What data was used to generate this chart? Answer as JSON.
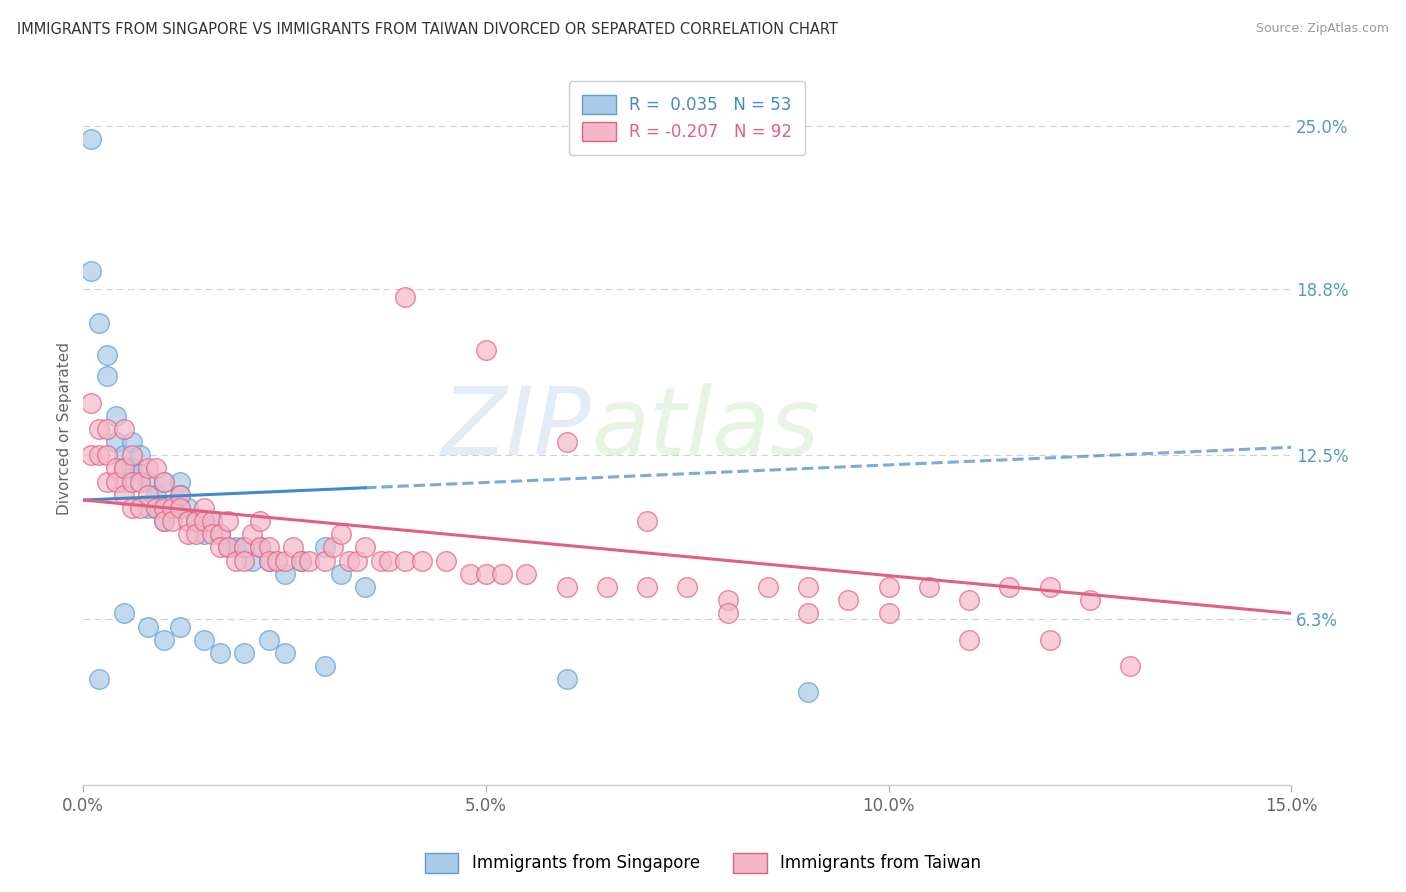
{
  "title": "IMMIGRANTS FROM SINGAPORE VS IMMIGRANTS FROM TAIWAN DIVORCED OR SEPARATED CORRELATION CHART",
  "source": "Source: ZipAtlas.com",
  "ylabel": "Divorced or Separated",
  "series": [
    {
      "label": "Immigrants from Singapore",
      "color": "#aac9e8",
      "edge_color": "#5a9fd4",
      "R": 0.035,
      "N": 53,
      "x": [
        0.001,
        0.001,
        0.002,
        0.003,
        0.003,
        0.004,
        0.004,
        0.005,
        0.005,
        0.005,
        0.006,
        0.006,
        0.007,
        0.007,
        0.008,
        0.008,
        0.009,
        0.009,
        0.01,
        0.01,
        0.011,
        0.012,
        0.012,
        0.013,
        0.014,
        0.015,
        0.015,
        0.016,
        0.017,
        0.018,
        0.019,
        0.02,
        0.021,
        0.022,
        0.023,
        0.025,
        0.027,
        0.03,
        0.032,
        0.035,
        0.005,
        0.008,
        0.01,
        0.012,
        0.015,
        0.017,
        0.02,
        0.023,
        0.025,
        0.03,
        0.002,
        0.06,
        0.09
      ],
      "y": [
        0.245,
        0.195,
        0.175,
        0.163,
        0.155,
        0.14,
        0.13,
        0.125,
        0.12,
        0.115,
        0.13,
        0.12,
        0.125,
        0.118,
        0.115,
        0.105,
        0.11,
        0.105,
        0.115,
        0.1,
        0.105,
        0.115,
        0.11,
        0.105,
        0.1,
        0.1,
        0.095,
        0.1,
        0.095,
        0.09,
        0.09,
        0.09,
        0.085,
        0.09,
        0.085,
        0.08,
        0.085,
        0.09,
        0.08,
        0.075,
        0.065,
        0.06,
        0.055,
        0.06,
        0.055,
        0.05,
        0.05,
        0.055,
        0.05,
        0.045,
        0.04,
        0.04,
        0.035
      ]
    },
    {
      "label": "Immigrants from Taiwan",
      "color": "#f4b8c8",
      "edge_color": "#e06080",
      "R": -0.207,
      "N": 92,
      "x": [
        0.001,
        0.001,
        0.002,
        0.002,
        0.003,
        0.003,
        0.003,
        0.004,
        0.004,
        0.005,
        0.005,
        0.005,
        0.006,
        0.006,
        0.006,
        0.007,
        0.007,
        0.008,
        0.008,
        0.009,
        0.009,
        0.01,
        0.01,
        0.01,
        0.011,
        0.011,
        0.012,
        0.012,
        0.013,
        0.013,
        0.014,
        0.014,
        0.015,
        0.015,
        0.016,
        0.016,
        0.017,
        0.017,
        0.018,
        0.018,
        0.019,
        0.02,
        0.02,
        0.021,
        0.022,
        0.022,
        0.023,
        0.023,
        0.024,
        0.025,
        0.026,
        0.027,
        0.028,
        0.03,
        0.031,
        0.032,
        0.033,
        0.034,
        0.035,
        0.037,
        0.038,
        0.04,
        0.042,
        0.045,
        0.048,
        0.05,
        0.052,
        0.055,
        0.06,
        0.065,
        0.07,
        0.075,
        0.08,
        0.085,
        0.09,
        0.095,
        0.1,
        0.105,
        0.11,
        0.115,
        0.12,
        0.125,
        0.04,
        0.05,
        0.06,
        0.07,
        0.08,
        0.09,
        0.1,
        0.11,
        0.12,
        0.13
      ],
      "y": [
        0.145,
        0.125,
        0.135,
        0.125,
        0.135,
        0.125,
        0.115,
        0.12,
        0.115,
        0.135,
        0.12,
        0.11,
        0.115,
        0.125,
        0.105,
        0.115,
        0.105,
        0.12,
        0.11,
        0.12,
        0.105,
        0.115,
        0.105,
        0.1,
        0.105,
        0.1,
        0.11,
        0.105,
        0.1,
        0.095,
        0.1,
        0.095,
        0.105,
        0.1,
        0.1,
        0.095,
        0.095,
        0.09,
        0.1,
        0.09,
        0.085,
        0.09,
        0.085,
        0.095,
        0.1,
        0.09,
        0.09,
        0.085,
        0.085,
        0.085,
        0.09,
        0.085,
        0.085,
        0.085,
        0.09,
        0.095,
        0.085,
        0.085,
        0.09,
        0.085,
        0.085,
        0.085,
        0.085,
        0.085,
        0.08,
        0.08,
        0.08,
        0.08,
        0.075,
        0.075,
        0.075,
        0.075,
        0.07,
        0.075,
        0.075,
        0.07,
        0.075,
        0.075,
        0.07,
        0.075,
        0.075,
        0.07,
        0.185,
        0.165,
        0.13,
        0.1,
        0.065,
        0.065,
        0.065,
        0.055,
        0.055,
        0.045
      ]
    }
  ],
  "xlim": [
    0.0,
    0.15
  ],
  "ylim": [
    0.0,
    0.27
  ],
  "yticks_right": [
    0.063,
    0.125,
    0.188,
    0.25
  ],
  "ytick_labels_right": [
    "6.3%",
    "12.5%",
    "18.8%",
    "25.0%"
  ],
  "xticks": [
    0.0,
    0.05,
    0.1,
    0.15
  ],
  "xtick_labels": [
    "0.0%",
    "5.0%",
    "10.0%",
    "15.0%"
  ],
  "watermark_zip": "ZIP",
  "watermark_atlas": "atlas",
  "background_color": "#ffffff",
  "grid_color": "#d0d0d0",
  "singapore_line_color": "#4488cc",
  "taiwan_line_color": "#e06080"
}
